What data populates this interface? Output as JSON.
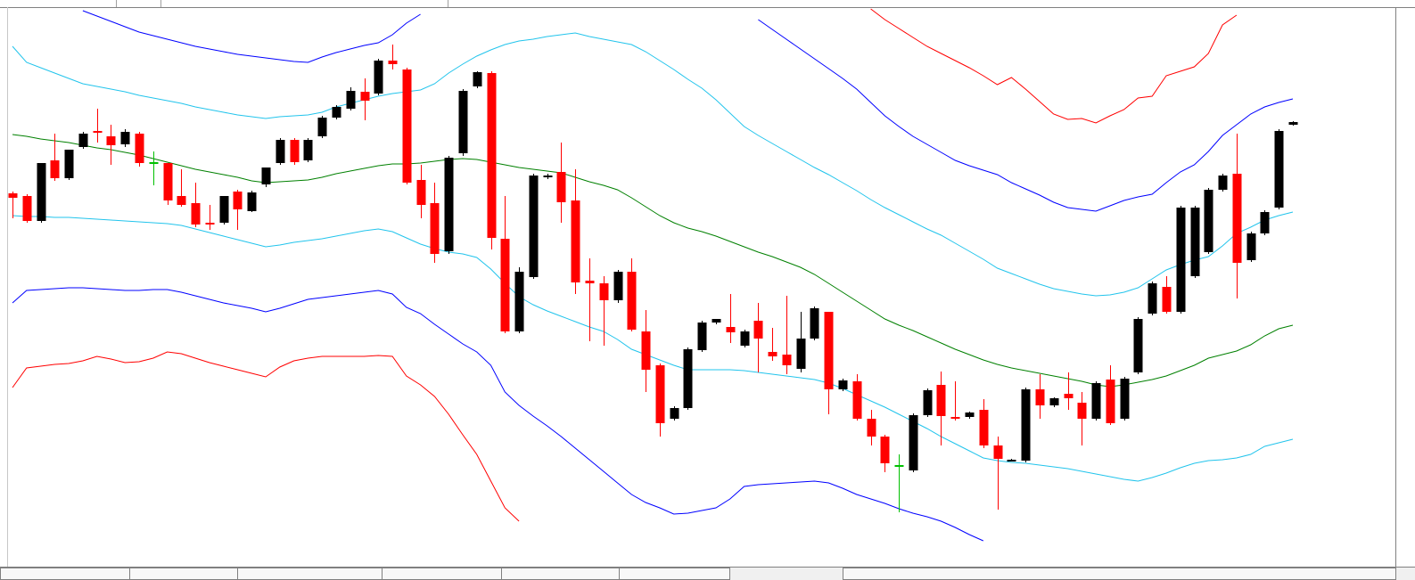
{
  "chart_data": {
    "type": "candlestick",
    "ylim": [
      0,
      625
    ],
    "up_color": "#000000",
    "down_color": "#ff0000",
    "doji_color": "#00c000",
    "open": [
      418,
      415,
      387,
      455,
      435,
      470,
      488,
      482,
      473,
      485,
      452,
      452,
      415,
      407,
      385,
      385,
      420,
      398,
      428,
      452,
      478,
      455,
      482,
      503,
      513,
      532,
      530,
      567,
      557,
      433,
      407,
      353,
      463,
      538,
      553,
      367,
      263,
      324,
      436,
      442,
      410,
      320,
      317,
      298,
      330,
      263,
      225,
      165,
      177,
      242,
      273,
      268,
      247,
      275,
      240,
      237,
      221,
      255,
      285,
      198,
      207,
      165,
      145,
      112,
      107,
      169,
      203,
      167,
      167,
      175,
      135,
      118,
      118,
      198,
      180,
      193,
      183,
      165,
      209,
      165,
      217,
      283,
      313,
      285,
      325,
      352,
      422,
      440,
      343,
      373,
      402,
      495
    ],
    "high": [
      420,
      417,
      452,
      485,
      467,
      487,
      513,
      495,
      490,
      487,
      465,
      452,
      445,
      430,
      405,
      415,
      422,
      421,
      447,
      480,
      480,
      480,
      505,
      517,
      537,
      547,
      569,
      585,
      559,
      450,
      430,
      460,
      535,
      555,
      555,
      415,
      335,
      440,
      440,
      475,
      445,
      345,
      325,
      332,
      345,
      287,
      227,
      179,
      245,
      275,
      277,
      305,
      265,
      295,
      267,
      303,
      285,
      291,
      285,
      210,
      215,
      175,
      147,
      125,
      171,
      199,
      218,
      207,
      173,
      187,
      145,
      120,
      200,
      215,
      189,
      217,
      195,
      207,
      225,
      212,
      279,
      319,
      325,
      404,
      404,
      424,
      440,
      485,
      375,
      399,
      490,
      499
    ],
    "low": [
      390,
      385,
      385,
      432,
      433,
      468,
      475,
      450,
      470,
      448,
      427,
      405,
      403,
      380,
      377,
      383,
      377,
      397,
      425,
      450,
      450,
      453,
      480,
      501,
      511,
      500,
      528,
      557,
      428,
      390,
      340,
      350,
      460,
      536,
      355,
      261,
      261,
      322,
      434,
      385,
      305,
      252,
      247,
      295,
      263,
      195,
      145,
      163,
      175,
      240,
      271,
      250,
      245,
      217,
      230,
      215,
      217,
      253,
      170,
      196,
      163,
      135,
      105,
      60,
      105,
      167,
      135,
      163,
      165,
      132,
      63,
      117,
      116,
      165,
      178,
      175,
      135,
      163,
      158,
      163,
      215,
      281,
      283,
      283,
      323,
      350,
      420,
      300,
      341,
      371,
      400,
      494
    ],
    "close": [
      413,
      387,
      452,
      435,
      467,
      485,
      486,
      472,
      487,
      452,
      452,
      410,
      405,
      383,
      383,
      415,
      400,
      419,
      447,
      478,
      453,
      478,
      503,
      515,
      533,
      522,
      567,
      563,
      430,
      405,
      350,
      458,
      533,
      554,
      368,
      263,
      330,
      438,
      438,
      408,
      318,
      317,
      298,
      330,
      265,
      220,
      160,
      177,
      243,
      273,
      277,
      262,
      263,
      255,
      235,
      225,
      255,
      289,
      198,
      208,
      165,
      145,
      115,
      112,
      169,
      197,
      168,
      165,
      172,
      135,
      120,
      119,
      198,
      180,
      188,
      188,
      165,
      205,
      160,
      210,
      277,
      317,
      285,
      402,
      402,
      422,
      438,
      340,
      373,
      397,
      488,
      498
    ],
    "series": [
      {
        "color": "#ff0000",
        "values": [
          null,
          null,
          null,
          null,
          null,
          null,
          null,
          null,
          null,
          null,
          null,
          null,
          null,
          null,
          null,
          null,
          null,
          null,
          null,
          null,
          null,
          null,
          null,
          null,
          null,
          null,
          null,
          null,
          null,
          null,
          null,
          null,
          null,
          null,
          null,
          null,
          null,
          null,
          null,
          null,
          null,
          null,
          null,
          null,
          null,
          null,
          null,
          null,
          null,
          null,
          null,
          null,
          null,
          null,
          null,
          null,
          null,
          null,
          null,
          null,
          null,
          625,
          613,
          603,
          593,
          583,
          575,
          567,
          559,
          550,
          540,
          548,
          535,
          521,
          507,
          501,
          502,
          497,
          505,
          512,
          525,
          527,
          550,
          555,
          560,
          575,
          607,
          618,
          null,
          null,
          null,
          null
        ]
      },
      {
        "color": "#0000ff",
        "values": [
          null,
          null,
          null,
          null,
          null,
          623,
          617,
          611,
          605,
          599,
          595,
          591,
          587,
          583,
          580,
          577,
          574,
          572,
          570,
          568,
          566,
          565,
          571,
          576,
          580,
          584,
          587,
          596,
          609,
          619,
          null,
          null,
          null,
          null,
          null,
          null,
          null,
          null,
          null,
          null,
          null,
          null,
          null,
          null,
          null,
          null,
          null,
          null,
          null,
          null,
          null,
          null,
          null,
          613,
          602,
          591,
          580,
          569,
          558,
          547,
          535,
          520,
          505,
          493,
          482,
          473,
          464,
          455,
          449,
          444,
          439,
          430,
          423,
          416,
          408,
          402,
          400,
          398,
          404,
          410,
          414,
          417,
          430,
          442,
          450,
          465,
          483,
          495,
          507,
          515,
          520,
          524
        ]
      },
      {
        "color": "#22c4ec",
        "values": [
          583,
          565,
          559,
          553,
          547,
          541,
          538,
          535,
          532,
          528,
          525,
          522,
          519,
          515,
          512,
          509,
          506,
          504,
          502,
          504,
          505,
          506,
          509,
          515,
          519,
          523,
          527,
          530,
          532,
          534,
          541,
          553,
          563,
          572,
          579,
          585,
          589,
          591,
          594,
          596,
          598,
          594,
          591,
          588,
          585,
          577,
          567,
          557,
          546,
          536,
          523,
          508,
          493,
          483,
          474,
          465,
          456,
          447,
          439,
          430,
          421,
          411,
          402,
          394,
          386,
          378,
          371,
          362,
          353,
          344,
          334,
          328,
          322,
          316,
          311,
          308,
          305,
          303,
          304,
          307,
          312,
          322,
          332,
          338,
          343,
          347,
          359,
          373,
          380,
          388,
          393,
          397
        ]
      },
      {
        "color": "#008000",
        "values": [
          484,
          482,
          479,
          477,
          475,
          472,
          469,
          467,
          464,
          461,
          457,
          453,
          449,
          445,
          442,
          439,
          436,
          432,
          430,
          431,
          432,
          433,
          436,
          440,
          443,
          446,
          449,
          451,
          451,
          452,
          454,
          456,
          457,
          456,
          453,
          450,
          447,
          445,
          443,
          441,
          436,
          431,
          427,
          422,
          413,
          403,
          393,
          385,
          379,
          375,
          370,
          364,
          358,
          352,
          347,
          341,
          335,
          327,
          317,
          307,
          297,
          287,
          277,
          270,
          264,
          257,
          250,
          243,
          237,
          231,
          226,
          222,
          219,
          216,
          213,
          210,
          207,
          203,
          201,
          203,
          206,
          209,
          213,
          219,
          225,
          233,
          237,
          241,
          248,
          258,
          266,
          270
        ]
      },
      {
        "color": "#22c4ec",
        "values": [
          393,
          392,
          392,
          391,
          391,
          390,
          389,
          388,
          387,
          386,
          385,
          384,
          382,
          378,
          374,
          370,
          366,
          362,
          358,
          360,
          363,
          365,
          367,
          370,
          373,
          376,
          378,
          375,
          368,
          361,
          356,
          352,
          350,
          346,
          333,
          317,
          302,
          293,
          286,
          280,
          274,
          268,
          263,
          254,
          243,
          237,
          231,
          225,
          220,
          220,
          220,
          220,
          219,
          217,
          215,
          213,
          211,
          209,
          205,
          199,
          192,
          185,
          178,
          170,
          162,
          154,
          145,
          137,
          129,
          121,
          118,
          116,
          115,
          113,
          111,
          109,
          106,
          103,
          100,
          97,
          95,
          99,
          104,
          110,
          115,
          118,
          119,
          121,
          125,
          134,
          138,
          142
        ]
      },
      {
        "color": "#0000ff",
        "values": [
          295,
          309,
          310,
          311,
          312,
          312,
          311,
          310,
          309,
          309,
          310,
          310,
          307,
          303,
          299,
          295,
          292,
          289,
          285,
          289,
          294,
          299,
          301,
          303,
          305,
          307,
          309,
          305,
          290,
          283,
          271,
          260,
          249,
          240,
          225,
          195,
          180,
          168,
          157,
          145,
          132,
          119,
          106,
          93,
          80,
          71,
          65,
          58,
          59,
          62,
          65,
          75,
          89,
          91,
          92,
          93,
          94,
          95,
          93,
          87,
          80,
          75,
          70,
          64,
          59,
          55,
          50,
          43,
          35,
          28,
          null,
          null,
          null,
          null,
          null,
          null,
          null,
          null,
          null,
          null,
          null,
          null,
          null,
          null,
          null,
          null,
          null,
          null,
          null,
          null,
          null,
          null
        ]
      },
      {
        "color": "#ff0000",
        "values": [
          200,
          222,
          224,
          226,
          227,
          230,
          235,
          232,
          228,
          229,
          233,
          240,
          238,
          233,
          228,
          224,
          220,
          216,
          212,
          223,
          230,
          233,
          235,
          235,
          235,
          235,
          236,
          235,
          213,
          203,
          190,
          170,
          147,
          125,
          95,
          65,
          50,
          null,
          null,
          null,
          null,
          null,
          null,
          null,
          null,
          null,
          null,
          null,
          null,
          null,
          null,
          null,
          null,
          null,
          null,
          null,
          null,
          null,
          null,
          null,
          null,
          null,
          null,
          null,
          null,
          null,
          null,
          null,
          null,
          null,
          null,
          null,
          null,
          null,
          null,
          null,
          null,
          null,
          null,
          null,
          null,
          null,
          null,
          null,
          null,
          null,
          null,
          null,
          null,
          null,
          null,
          null
        ]
      }
    ]
  }
}
